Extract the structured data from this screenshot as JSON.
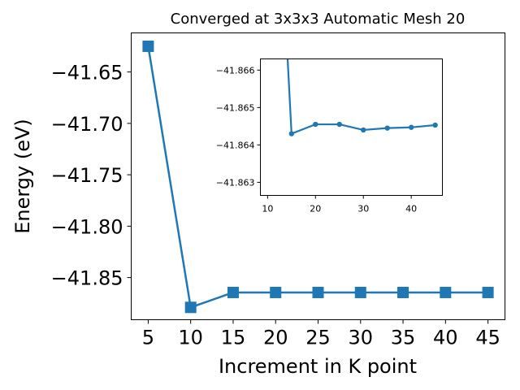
{
  "chart_data": [
    {
      "type": "line",
      "title": "Converged at 3x3x3 Automatic Mesh 20",
      "xlabel": "Increment in K point",
      "ylabel": "Energy (eV)",
      "marker": "square",
      "x": [
        5,
        10,
        15,
        20,
        25,
        30,
        35,
        40,
        45
      ],
      "series": [
        {
          "values": [
            -41.625,
            -41.879,
            -41.8645,
            -41.8645,
            -41.8645,
            -41.8645,
            -41.8645,
            -41.8645,
            -41.8645
          ]
        }
      ],
      "xlim": [
        3.0,
        47.0
      ],
      "ylim": [
        -41.891,
        -41.612
      ],
      "xticks": [
        5,
        10,
        15,
        20,
        25,
        30,
        35,
        40,
        45
      ],
      "yticks": [
        -41.85,
        -41.8,
        -41.75,
        -41.7,
        -41.65
      ],
      "ytick_labels": [
        "−41.85",
        "−41.80",
        "−41.75",
        "−41.70",
        "−41.65"
      ],
      "grid": false,
      "legend": "none",
      "color": "#1f77b4"
    },
    {
      "type": "line",
      "role": "inset",
      "marker": "circle",
      "x": [
        15,
        20,
        25,
        30,
        35,
        40,
        45
      ],
      "series": [
        {
          "values": [
            -41.8643,
            -41.86455,
            -41.86455,
            -41.8644,
            -41.86445,
            -41.86447,
            -41.86453
          ]
        }
      ],
      "line_enters_from": [
        14.1,
        -41.8665
      ],
      "xlim": [
        8.5,
        46.5
      ],
      "ylim": [
        -41.8663,
        -41.86265
      ],
      "yaxis_inverted": true,
      "xticks": [
        10,
        20,
        30,
        40
      ],
      "yticks": [
        -41.866,
        -41.865,
        -41.864,
        -41.863
      ],
      "ytick_labels": [
        "−41.866",
        "−41.865",
        "−41.864",
        "−41.863"
      ],
      "grid": false,
      "legend": "none",
      "color": "#1f77b4"
    }
  ]
}
